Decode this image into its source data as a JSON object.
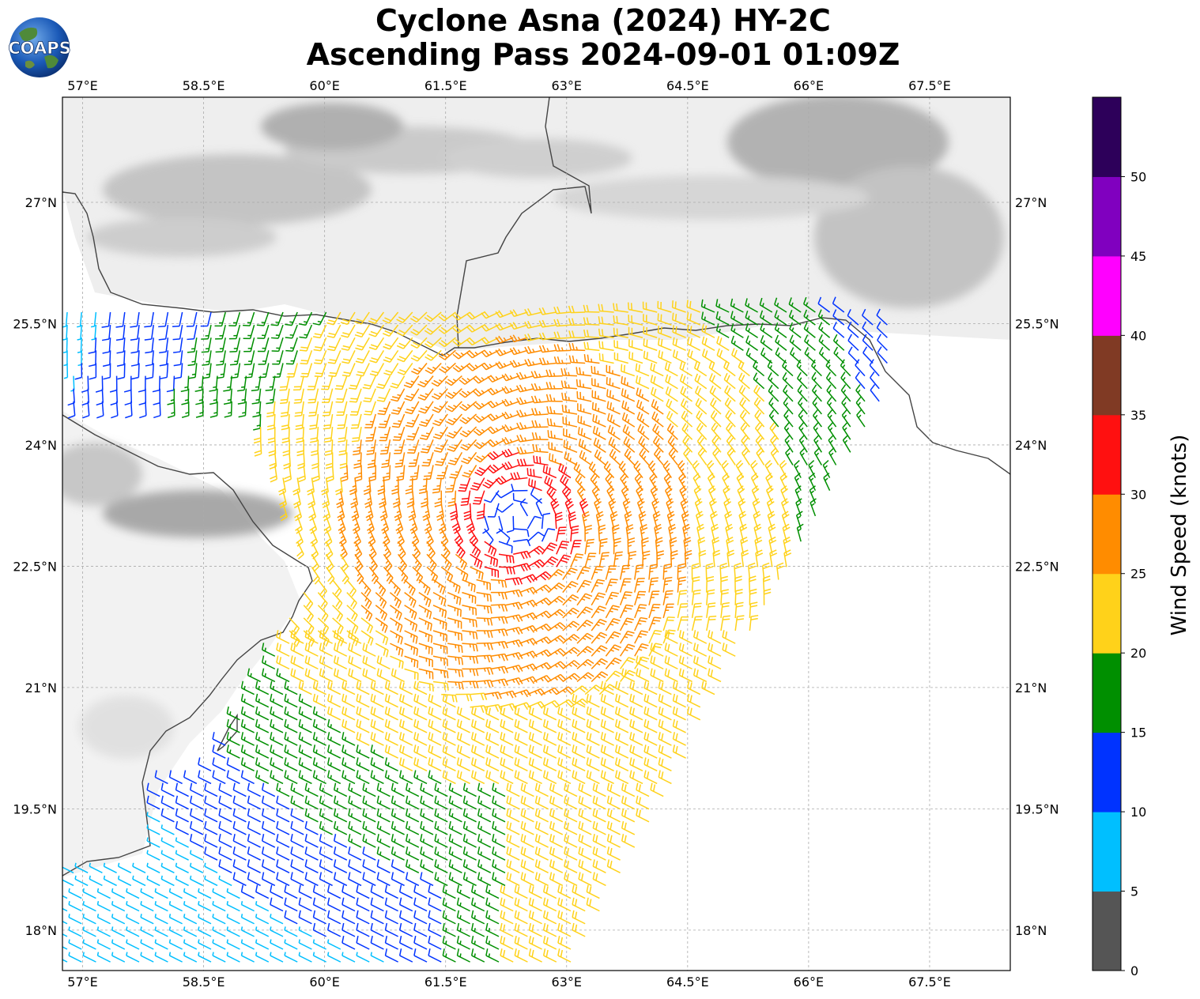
{
  "title": {
    "line1": "Cyclone Asna (2024) HY-2C",
    "line2": "Ascending Pass 2024-09-01 01:09Z"
  },
  "logo": {
    "text": "COAPS",
    "icon": "globe-logo"
  },
  "map": {
    "lon_range": [
      56.75,
      68.5
    ],
    "lat_range": [
      17.5,
      28.3
    ],
    "lon_ticks": [
      57,
      58.5,
      60,
      61.5,
      63,
      64.5,
      66,
      67.5
    ],
    "lon_tick_labels": [
      "57°E",
      "58.5°E",
      "60°E",
      "61.5°E",
      "63°E",
      "64.5°E",
      "66°E",
      "67.5°E"
    ],
    "lat_ticks": [
      27,
      25.5,
      24,
      22.5,
      21,
      19.5,
      18
    ],
    "lat_tick_labels": [
      "27°N",
      "25.5°N",
      "24°N",
      "22.5°N",
      "21°N",
      "19.5°N",
      "18°N"
    ],
    "gridlines": true,
    "cyclone_center": {
      "lon": 62.4,
      "lat": 23.1
    }
  },
  "colorbar": {
    "label": "Wind Speed (knots)",
    "ticks": [
      "0",
      "5",
      "10",
      "15",
      "20",
      "25",
      "30",
      "35",
      "40",
      "45",
      "50"
    ],
    "colors": [
      "#555555",
      "#00bfff",
      "#0033ff",
      "#008f00",
      "#ffd21a",
      "#ff8c00",
      "#ff1010",
      "#803a24",
      "#ff00ff",
      "#8000bf",
      "#2d005a"
    ]
  }
}
